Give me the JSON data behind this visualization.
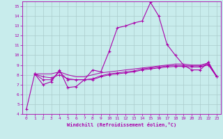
{
  "xlabel": "Windchill (Refroidissement éolien,°C)",
  "bg_color": "#c8ecec",
  "grid_color": "#aacccc",
  "line_color": "#aa00aa",
  "xlim": [
    -0.5,
    23.5
  ],
  "ylim": [
    4,
    15.5
  ],
  "xticks": [
    0,
    1,
    2,
    3,
    4,
    5,
    6,
    7,
    8,
    9,
    10,
    11,
    12,
    13,
    14,
    15,
    16,
    17,
    18,
    19,
    20,
    21,
    22,
    23
  ],
  "yticks": [
    4,
    5,
    6,
    7,
    8,
    9,
    10,
    11,
    12,
    13,
    14,
    15
  ],
  "line1_x": [
    0,
    1,
    2,
    3,
    4,
    5,
    6,
    7,
    8,
    9,
    10,
    11,
    12,
    13,
    14,
    15,
    16,
    17,
    18,
    19,
    20,
    21,
    22,
    23
  ],
  "line1_y": [
    4.5,
    8.1,
    7.0,
    7.3,
    8.5,
    6.7,
    6.8,
    7.5,
    8.5,
    8.3,
    10.4,
    12.8,
    13.0,
    13.3,
    13.5,
    15.4,
    14.0,
    11.1,
    10.0,
    9.0,
    8.5,
    8.5,
    9.3,
    7.8
  ],
  "line2_x": [
    1,
    2,
    3,
    4,
    5,
    6,
    7,
    8,
    9,
    10,
    11,
    12,
    13,
    14,
    15,
    16,
    17,
    18,
    19,
    20,
    21,
    22,
    23
  ],
  "line2_y": [
    8.1,
    7.5,
    7.5,
    8.3,
    7.5,
    7.5,
    7.5,
    7.5,
    7.8,
    8.0,
    8.1,
    8.2,
    8.3,
    8.5,
    8.6,
    8.7,
    8.8,
    8.85,
    8.85,
    8.8,
    8.8,
    9.0,
    7.8
  ],
  "line3_x": [
    1,
    2,
    3,
    4,
    5,
    6,
    7,
    8,
    9,
    10,
    11,
    12,
    13,
    14,
    15,
    16,
    17,
    18,
    19,
    20,
    21,
    22,
    23
  ],
  "line3_y": [
    8.1,
    7.8,
    7.7,
    8.0,
    7.6,
    7.5,
    7.5,
    7.6,
    7.9,
    8.1,
    8.2,
    8.3,
    8.4,
    8.6,
    8.7,
    8.8,
    8.9,
    8.95,
    8.95,
    8.9,
    8.9,
    9.1,
    7.8
  ],
  "line4_x": [
    1,
    2,
    3,
    4,
    5,
    6,
    7,
    8,
    9,
    10,
    11,
    12,
    13,
    14,
    15,
    16,
    17,
    18,
    19,
    20,
    21,
    22,
    23
  ],
  "line4_y": [
    8.1,
    8.1,
    8.1,
    8.3,
    8.0,
    7.8,
    7.8,
    8.0,
    8.2,
    8.3,
    8.4,
    8.5,
    8.6,
    8.7,
    8.8,
    8.9,
    9.0,
    9.1,
    9.1,
    9.0,
    9.0,
    9.2,
    7.9
  ]
}
